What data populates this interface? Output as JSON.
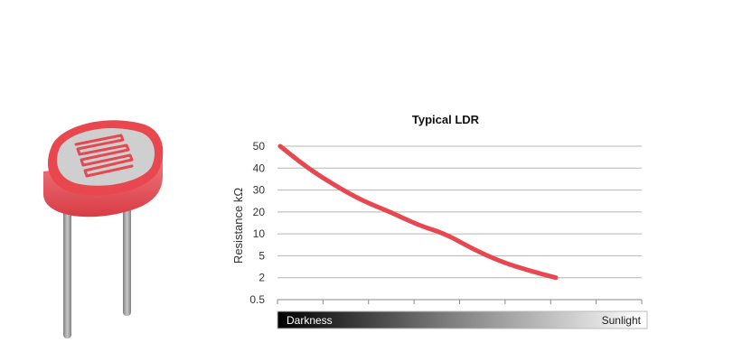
{
  "chart_data": {
    "type": "line",
    "title": "Typical LDR",
    "xlabel": "",
    "ylabel": "Resistance kΩ",
    "y_ticks": [
      "50",
      "40",
      "30",
      "20",
      "10",
      "5",
      "2",
      "0.5"
    ],
    "grid": true,
    "x_scale_labels": {
      "left": "Darkness",
      "right": "Sunlight"
    },
    "x_tick_count": 9,
    "series": [
      {
        "line_color": "#e8474f",
        "x_fraction": [
          0.0,
          0.1,
          0.2,
          0.3,
          0.4,
          0.5,
          0.6,
          0.7,
          0.8,
          0.9,
          1.0
        ],
        "y": [
          "50",
          "40",
          "32",
          "25",
          "20",
          "14",
          "10",
          "6.5",
          "4.2",
          "3",
          "2"
        ]
      }
    ]
  },
  "illustration": {
    "component": "light-dependent-resistor",
    "body_color": "#e8474f",
    "face_color": "#cfcfcf",
    "lead_color": "#9a9a9a"
  }
}
